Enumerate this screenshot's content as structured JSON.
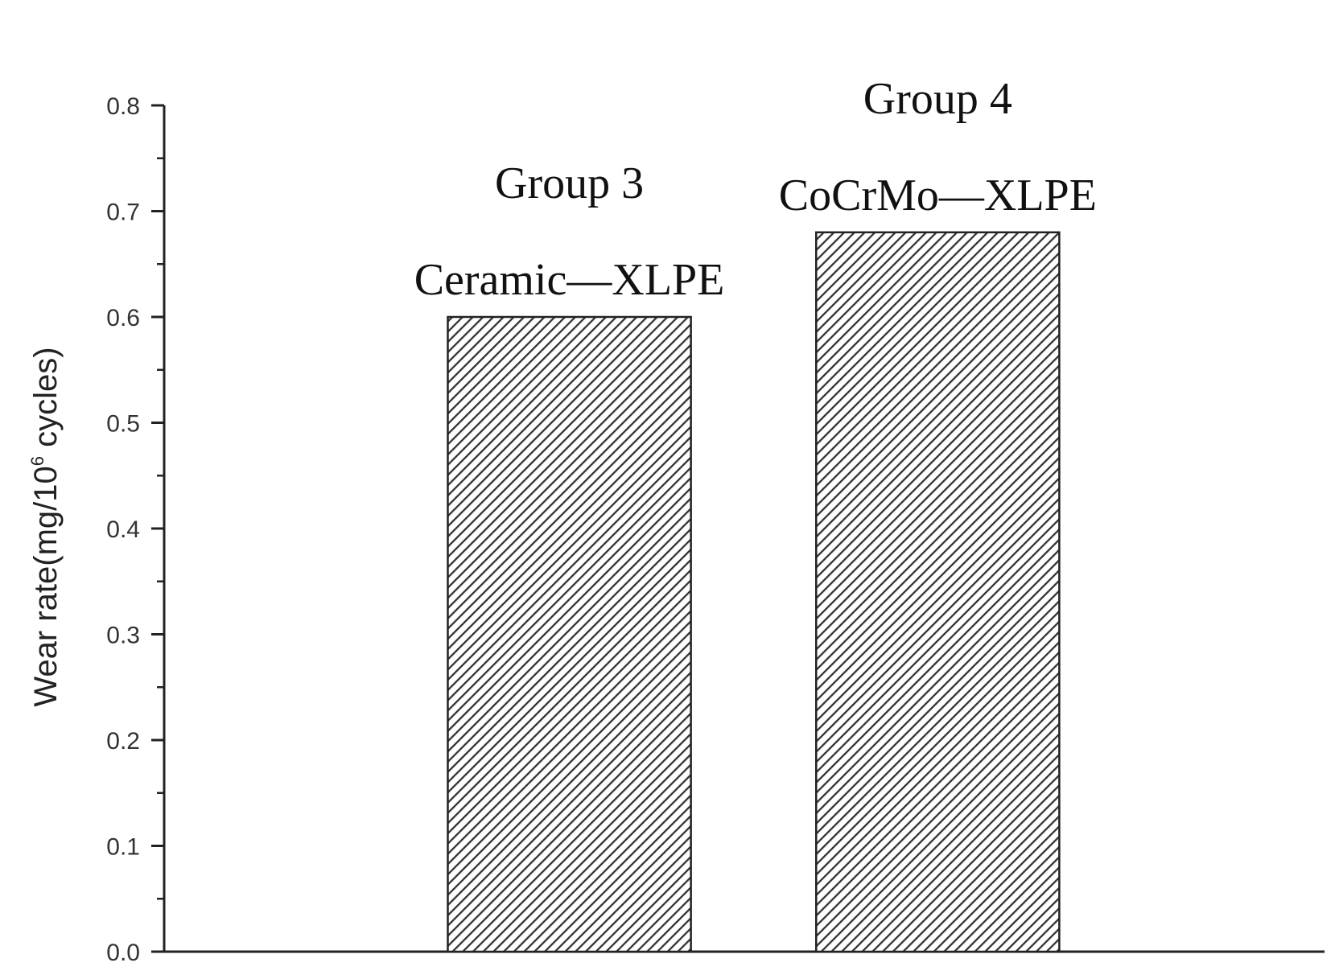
{
  "chart_data": {
    "type": "bar",
    "title": "",
    "xlabel": "",
    "ylabel": {
      "prefix": "Wear rate(mg/10",
      "superscript": "6",
      "suffix": " cycles)"
    },
    "ylim": [
      0,
      0.8
    ],
    "yticks": [
      "0.0",
      "0.1",
      "0.2",
      "0.3",
      "0.4",
      "0.5",
      "0.6",
      "0.7",
      "0.8"
    ],
    "grid": false,
    "legend": "none",
    "bar_fill": "diagonal-hatch",
    "colors": {
      "bar_edge": "#222222",
      "hatch": "#333333",
      "axis": "#222222"
    },
    "bars": [
      {
        "group": "Group 3",
        "label": "Ceramic—XLPE",
        "value": 0.6
      },
      {
        "group": "Group 4",
        "label": "CoCrMo—XLPE",
        "value": 0.68
      }
    ]
  }
}
